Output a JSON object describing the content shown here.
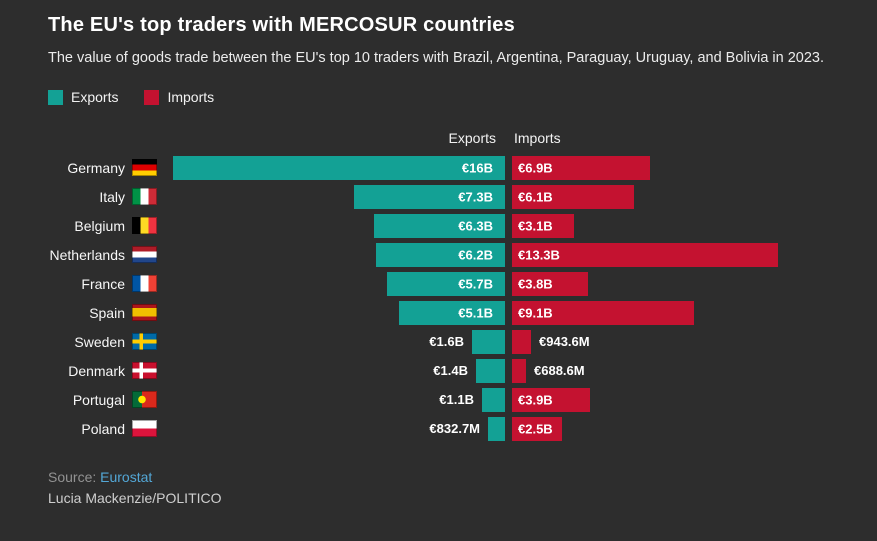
{
  "title": "The EU's top traders with MERCOSUR countries",
  "subtitle": "The value of goods trade between the EU's top 10 traders with Brazil, Argentina, Paraguay, Uruguay, and Bolivia in 2023.",
  "legend": {
    "exports": "Exports",
    "imports": "Imports"
  },
  "columns": {
    "exports": "Exports",
    "imports": "Imports"
  },
  "source": {
    "prefix": "Source:",
    "link": "Eurostat",
    "credit": "Lucia Mackenzie/POLITICO"
  },
  "colors": {
    "background": "#2d2d2d",
    "exports": "#13a195",
    "imports": "#c41230",
    "link": "#53a7d6"
  },
  "chart_data": {
    "type": "bar",
    "orientation": "diverging-horizontal",
    "title": "The EU's top traders with MERCOSUR countries",
    "unit": "EUR, billions",
    "categories": [
      "Germany",
      "Italy",
      "Belgium",
      "Netherlands",
      "France",
      "Spain",
      "Sweden",
      "Denmark",
      "Portugal",
      "Poland"
    ],
    "series": [
      {
        "name": "Exports",
        "values": [
          16,
          7.3,
          6.3,
          6.2,
          5.7,
          5.1,
          1.6,
          1.4,
          1.1,
          0.8327
        ],
        "labels": [
          "€16B",
          "€7.3B",
          "€6.3B",
          "€6.2B",
          "€5.7B",
          "€5.1B",
          "€1.6B",
          "€1.4B",
          "€1.1B",
          "€832.7M"
        ]
      },
      {
        "name": "Imports",
        "values": [
          6.9,
          6.1,
          3.1,
          13.3,
          3.8,
          9.1,
          0.9436,
          0.6886,
          3.9,
          2.5
        ],
        "labels": [
          "€6.9B",
          "€6.1B",
          "€3.1B",
          "€13.3B",
          "€3.8B",
          "€9.1B",
          "€943.6M",
          "€688.6M",
          "€3.9B",
          "€2.5B"
        ]
      }
    ],
    "flags": [
      {
        "code": "de",
        "icon": "germany-flag-icon"
      },
      {
        "code": "it",
        "icon": "italy-flag-icon"
      },
      {
        "code": "be",
        "icon": "belgium-flag-icon"
      },
      {
        "code": "nl",
        "icon": "netherlands-flag-icon"
      },
      {
        "code": "fr",
        "icon": "france-flag-icon"
      },
      {
        "code": "es",
        "icon": "spain-flag-icon"
      },
      {
        "code": "se",
        "icon": "sweden-flag-icon"
      },
      {
        "code": "dk",
        "icon": "denmark-flag-icon"
      },
      {
        "code": "pt",
        "icon": "portugal-flag-icon"
      },
      {
        "code": "pl",
        "icon": "poland-flag-icon"
      }
    ]
  }
}
